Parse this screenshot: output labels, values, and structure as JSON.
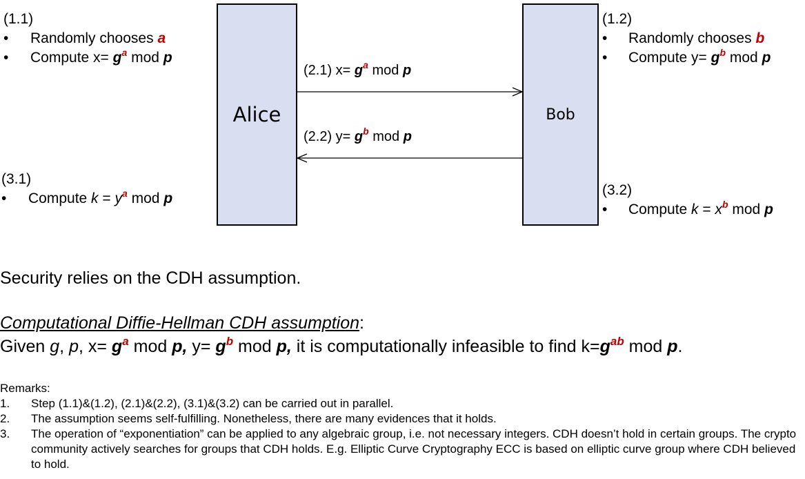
{
  "colors": {
    "box_fill": "#d9dff0",
    "highlight": "#c00000"
  },
  "alice_box": {
    "label": "Alice"
  },
  "bob_box": {
    "label": "Bob"
  },
  "step_1_1": {
    "header": "(1.1)",
    "bullet": "•",
    "line1_text": "Randomly chooses ",
    "line1_var": "a",
    "line2_prefix": "Compute x= ",
    "base": "g",
    "exp": "a",
    "mod_text": " mod ",
    "modulus": "p"
  },
  "step_1_2": {
    "header": "(1.2)",
    "bullet": "•",
    "line1_text": "Randomly chooses ",
    "line1_var": "b",
    "line2_prefix": "Compute y= ",
    "base": "g",
    "exp": "b",
    "mod_text": " mod ",
    "modulus": "p"
  },
  "message_2_1": {
    "prefix": "(2.1) x= ",
    "base": "g",
    "exp": "a",
    "mod_text": " mod ",
    "modulus": "p"
  },
  "message_2_2": {
    "prefix": "(2.2) y= ",
    "base": "g",
    "exp": "b",
    "mod_text": " mod ",
    "modulus": "p"
  },
  "step_3_1": {
    "header": "(3.1)",
    "bullet": "•",
    "prefix": "Compute  ",
    "k": "k",
    "eq": " =  ",
    "base": "y",
    "exp": "a",
    "mod_text": " mod ",
    "modulus": "p"
  },
  "step_3_2": {
    "header": "(3.2)",
    "bullet": "•",
    "prefix": "Compute ",
    "k": "k",
    "eq": " =  ",
    "base": "x",
    "exp": "b",
    "mod_text": " mod ",
    "modulus": "p"
  },
  "security": {
    "text": "Security relies on the CDH assumption."
  },
  "cdh": {
    "heading": "Computational Diffie-Hellman CDH assumption",
    "heading_colon": ":",
    "given": "Given ",
    "g": "g",
    "comma1": ", ",
    "p": "p",
    "x_prefix": ", x= ",
    "g_a_base": "g",
    "g_a_exp": "a",
    "mod1": " mod ",
    "p1": "p,",
    "y_prefix": " y= ",
    "g_b_base": "g",
    "g_b_exp": "b",
    "mod2": " mod ",
    "p2": "p,",
    "tail": " it is computationally infeasible to find k=",
    "g_ab_base": "g",
    "g_ab_exp": "ab",
    "mod3": " mod ",
    "p3": "p",
    "end": "."
  },
  "remarks": {
    "title": "Remarks:",
    "items": [
      {
        "num": "1.",
        "text": "Step (1.1)&(1.2), (2.1)&(2.2), (3.1)&(3.2) can be carried out in parallel."
      },
      {
        "num": "2.",
        "text": "The assumption seems self-fulfilling. Nonetheless, there are many evidences that it holds."
      },
      {
        "num": "3.",
        "text": "The operation of “exponentiation” can be applied to any algebraic group, i.e. not necessary integers. CDH doesn’t hold in certain groups. The crypto community actively searches for groups that CDH holds.  E.g.  Elliptic Curve Cryptography ECC is based on elliptic curve group where CDH believed to hold."
      }
    ]
  }
}
